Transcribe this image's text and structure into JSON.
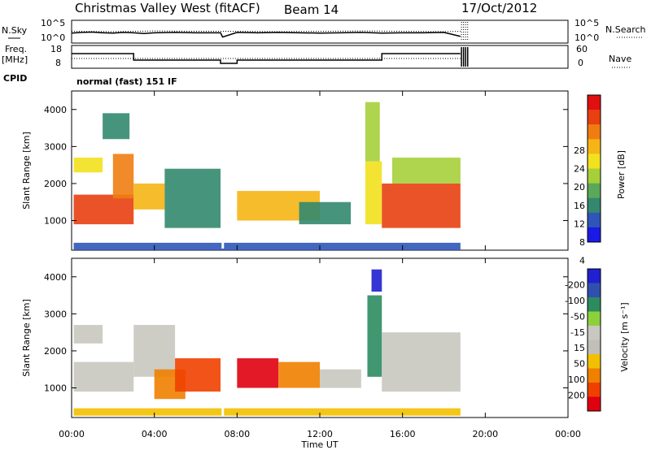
{
  "header": {
    "station": "Christmas Valley West (fitACF)",
    "beam": "Beam 14",
    "date": "17/Oct/2012"
  },
  "side_labels": {
    "nsky": "N.Sky",
    "freq_line1": "Freq.",
    "freq_line2": "[MHz]",
    "cpid": "CPID",
    "nsearch": "N.Search",
    "nave": "Nave",
    "cpid_value": "normal (fast) 151 IF"
  },
  "colors": {
    "power_scale": [
      "#1a1ae6",
      "#2f55b8",
      "#33886e",
      "#5aa85a",
      "#a6cf3a",
      "#f2e11e",
      "#f5b515",
      "#f07d12",
      "#e84010",
      "#e01010"
    ],
    "velocity_scale": [
      "#2020d0",
      "#3050b0",
      "#2c8c60",
      "#8cd03c",
      "#c8c8c0",
      "#c0c0b8",
      "#f2c000",
      "#f08000",
      "#f04000",
      "#e00010"
    ],
    "frame": "#000000"
  },
  "chart_data": [
    {
      "type": "line",
      "panel": "noise",
      "left_ticks": [
        "10^5",
        "10^0"
      ],
      "right_ticks": [
        "10^5",
        "10^0"
      ],
      "series": [
        {
          "name": "N.Sky",
          "style": "solid",
          "x": [
            0,
            0.5,
            1,
            1.5,
            2,
            2.5,
            3,
            3.5,
            4,
            5,
            6,
            7.2,
            7.3,
            8,
            9,
            10,
            11,
            12,
            13,
            14,
            15,
            16,
            17,
            18,
            18.8
          ],
          "y": [
            2.1,
            2.3,
            2.4,
            2.2,
            2.1,
            2.3,
            2.2,
            2.0,
            2.2,
            2.3,
            2.2,
            2.2,
            1.0,
            2.3,
            2.2,
            2.3,
            2.2,
            2.1,
            2.2,
            2.3,
            2.1,
            2.2,
            2.2,
            2.3,
            1.2
          ]
        },
        {
          "name": "N.Search",
          "style": "dotted",
          "x": [
            0,
            2,
            4,
            6,
            8,
            10,
            12,
            14,
            16,
            18,
            18.8
          ],
          "y": [
            2.6,
            2.5,
            2.7,
            2.6,
            2.6,
            2.5,
            2.6,
            2.7,
            2.6,
            2.5,
            2.6
          ]
        }
      ]
    },
    {
      "type": "line",
      "panel": "frequency",
      "left_ticks": [
        "18",
        "8"
      ],
      "right_ticks": [
        "60",
        "0"
      ],
      "series": [
        {
          "name": "Freq.",
          "style": "solid",
          "x": [
            0,
            3.0,
            3.0,
            7.2,
            7.2,
            8.0,
            8.0,
            15.0,
            15.0,
            18.8
          ],
          "y": [
            15,
            15,
            11,
            11,
            9,
            9,
            11,
            11,
            15,
            15
          ]
        },
        {
          "name": "Nave",
          "style": "dotted",
          "x": [
            0,
            3,
            7.2,
            8,
            15,
            18.8
          ],
          "y": [
            12,
            12,
            12,
            12,
            12,
            12
          ]
        }
      ]
    },
    {
      "type": "heatmap",
      "panel": "power",
      "xlabel": "",
      "ylabel": "Slant Range [km]",
      "ylim": [
        200,
        4500
      ],
      "xlim": [
        0,
        24
      ],
      "y_ticks": [
        "1000",
        "2000",
        "3000",
        "4000"
      ],
      "colorbar_label": "Power [dB]",
      "colorbar_ticks": [
        "4",
        "8",
        "12",
        "16",
        "20",
        "24",
        "28"
      ],
      "regions": [
        {
          "t0": 0.1,
          "t1": 3.0,
          "r0": 900,
          "r1": 1700,
          "value": 26
        },
        {
          "t0": 0.1,
          "t1": 1.5,
          "r0": 2300,
          "r1": 2700,
          "value": 18
        },
        {
          "t0": 2.0,
          "t1": 3.0,
          "r0": 1600,
          "r1": 2800,
          "value": 24
        },
        {
          "t0": 3.0,
          "t1": 4.5,
          "r0": 1300,
          "r1": 2000,
          "value": 22
        },
        {
          "t0": 4.5,
          "t1": 7.2,
          "r0": 800,
          "r1": 2400,
          "value": 10
        },
        {
          "t0": 1.5,
          "t1": 2.8,
          "r0": 3200,
          "r1": 3900,
          "value": 8
        },
        {
          "t0": 8.0,
          "t1": 12.0,
          "r0": 1000,
          "r1": 1800,
          "value": 20
        },
        {
          "t0": 11.0,
          "t1": 13.5,
          "r0": 900,
          "r1": 1500,
          "value": 10
        },
        {
          "t0": 14.2,
          "t1": 15.0,
          "r0": 900,
          "r1": 2600,
          "value": 18
        },
        {
          "t0": 15.0,
          "t1": 18.8,
          "r0": 800,
          "r1": 2000,
          "value": 26
        },
        {
          "t0": 15.5,
          "t1": 18.8,
          "r0": 2000,
          "r1": 2700,
          "value": 14
        },
        {
          "t0": 0.1,
          "t1": 18.8,
          "r0": 200,
          "r1": 400,
          "value": 6
        },
        {
          "t0": 14.2,
          "t1": 14.9,
          "r0": 2600,
          "r1": 4200,
          "value": 14
        }
      ]
    },
    {
      "type": "heatmap",
      "panel": "velocity",
      "xlabel": "Time UT",
      "ylabel": "Slant Range [km]",
      "ylim": [
        200,
        4500
      ],
      "xlim": [
        0,
        24
      ],
      "x_ticks": [
        "00:00",
        "04:00",
        "08:00",
        "12:00",
        "16:00",
        "20:00",
        "00:00"
      ],
      "y_ticks": [
        "1000",
        "2000",
        "3000",
        "4000"
      ],
      "colorbar_label": "Velocity [m s⁻¹]",
      "colorbar_ticks": [
        "-200",
        "-100",
        "-50",
        "-15",
        "15",
        "50",
        "100",
        "200"
      ],
      "regions": [
        {
          "t0": 0.1,
          "t1": 3.0,
          "r0": 900,
          "r1": 1700,
          "value": 0
        },
        {
          "t0": 0.1,
          "t1": 1.5,
          "r0": 2200,
          "r1": 2700,
          "value": 0
        },
        {
          "t0": 3.0,
          "t1": 5.0,
          "r0": 1300,
          "r1": 2700,
          "value": 0
        },
        {
          "t0": 4.0,
          "t1": 5.5,
          "r0": 700,
          "r1": 1500,
          "value": -60
        },
        {
          "t0": 5.0,
          "t1": 7.2,
          "r0": 900,
          "r1": 1800,
          "value": -150
        },
        {
          "t0": 8.0,
          "t1": 10.0,
          "r0": 1000,
          "r1": 1800,
          "value": -180
        },
        {
          "t0": 10.0,
          "t1": 12.0,
          "r0": 1000,
          "r1": 1700,
          "value": -60
        },
        {
          "t0": 12.0,
          "t1": 14.0,
          "r0": 1000,
          "r1": 1500,
          "value": 0
        },
        {
          "t0": 14.3,
          "t1": 15.0,
          "r0": 1300,
          "r1": 3500,
          "value": 40
        },
        {
          "t0": 15.0,
          "t1": 18.8,
          "r0": 900,
          "r1": 2500,
          "value": 0
        },
        {
          "t0": 0.1,
          "t1": 18.8,
          "r0": 250,
          "r1": 450,
          "value": -40
        },
        {
          "t0": 14.5,
          "t1": 15.0,
          "r0": 3600,
          "r1": 4200,
          "value": 200
        }
      ]
    }
  ]
}
